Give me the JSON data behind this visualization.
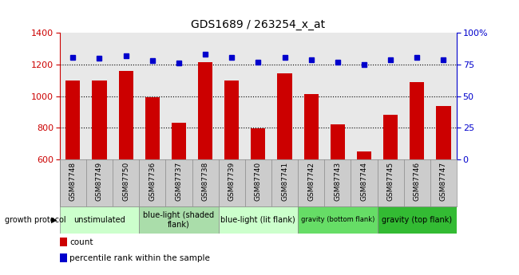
{
  "title": "GDS1689 / 263254_x_at",
  "samples": [
    "GSM87748",
    "GSM87749",
    "GSM87750",
    "GSM87736",
    "GSM87737",
    "GSM87738",
    "GSM87739",
    "GSM87740",
    "GSM87741",
    "GSM87742",
    "GSM87743",
    "GSM87744",
    "GSM87745",
    "GSM87746",
    "GSM87747"
  ],
  "counts": [
    1102,
    1098,
    1162,
    994,
    832,
    1213,
    1098,
    795,
    1145,
    1012,
    822,
    652,
    882,
    1090,
    936
  ],
  "percentiles": [
    81,
    80,
    82,
    78,
    76,
    83,
    81,
    77,
    81,
    79,
    77,
    75,
    79,
    81,
    79
  ],
  "ymin": 600,
  "ymax": 1400,
  "yticks_left": [
    600,
    800,
    1000,
    1200,
    1400
  ],
  "yticks_right": [
    0,
    25,
    50,
    75,
    100
  ],
  "bar_color": "#cc0000",
  "dot_color": "#0000cc",
  "plot_bg": "#e8e8e8",
  "xtick_bg": "#cccccc",
  "group_boundaries": [
    {
      "label": "unstimulated",
      "start": 0,
      "end": 3,
      "color": "#ccffcc"
    },
    {
      "label": "blue-light (shaded\nflank)",
      "start": 3,
      "end": 6,
      "color": "#aaddaa"
    },
    {
      "label": "blue-light (lit flank)",
      "start": 6,
      "end": 9,
      "color": "#ccffcc"
    },
    {
      "label": "gravity (bottom flank)",
      "start": 9,
      "end": 12,
      "color": "#66dd66"
    },
    {
      "label": "gravity (top flank)",
      "start": 12,
      "end": 15,
      "color": "#33bb33"
    }
  ],
  "tick_color_left": "#cc0000",
  "tick_color_right": "#0000cc",
  "legend_count": "count",
  "legend_pct": "percentile rank within the sample",
  "growth_label": "growth protocol"
}
